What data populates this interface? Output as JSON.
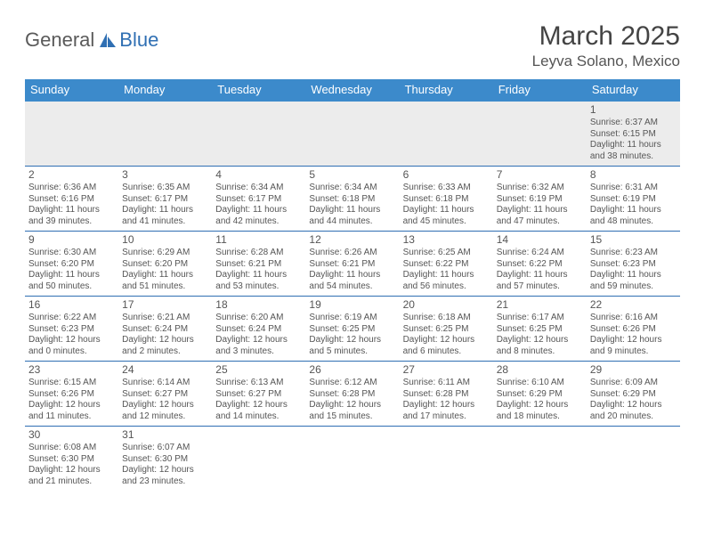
{
  "brand": {
    "gray": "General",
    "blue": "Blue"
  },
  "title": {
    "month": "March 2025",
    "location": "Leyva Solano, Mexico"
  },
  "colors": {
    "header_bg": "#3c8acb",
    "header_text": "#ffffff",
    "cell_border": "#2f6fb3",
    "text": "#555555",
    "empty_bg": "#ececec"
  },
  "dayNames": [
    "Sunday",
    "Monday",
    "Tuesday",
    "Wednesday",
    "Thursday",
    "Friday",
    "Saturday"
  ],
  "weeks": [
    [
      null,
      null,
      null,
      null,
      null,
      null,
      {
        "n": "1",
        "sr": "Sunrise: 6:37 AM",
        "ss": "Sunset: 6:15 PM",
        "dl": "Daylight: 11 hours and 38 minutes."
      }
    ],
    [
      {
        "n": "2",
        "sr": "Sunrise: 6:36 AM",
        "ss": "Sunset: 6:16 PM",
        "dl": "Daylight: 11 hours and 39 minutes."
      },
      {
        "n": "3",
        "sr": "Sunrise: 6:35 AM",
        "ss": "Sunset: 6:17 PM",
        "dl": "Daylight: 11 hours and 41 minutes."
      },
      {
        "n": "4",
        "sr": "Sunrise: 6:34 AM",
        "ss": "Sunset: 6:17 PM",
        "dl": "Daylight: 11 hours and 42 minutes."
      },
      {
        "n": "5",
        "sr": "Sunrise: 6:34 AM",
        "ss": "Sunset: 6:18 PM",
        "dl": "Daylight: 11 hours and 44 minutes."
      },
      {
        "n": "6",
        "sr": "Sunrise: 6:33 AM",
        "ss": "Sunset: 6:18 PM",
        "dl": "Daylight: 11 hours and 45 minutes."
      },
      {
        "n": "7",
        "sr": "Sunrise: 6:32 AM",
        "ss": "Sunset: 6:19 PM",
        "dl": "Daylight: 11 hours and 47 minutes."
      },
      {
        "n": "8",
        "sr": "Sunrise: 6:31 AM",
        "ss": "Sunset: 6:19 PM",
        "dl": "Daylight: 11 hours and 48 minutes."
      }
    ],
    [
      {
        "n": "9",
        "sr": "Sunrise: 6:30 AM",
        "ss": "Sunset: 6:20 PM",
        "dl": "Daylight: 11 hours and 50 minutes."
      },
      {
        "n": "10",
        "sr": "Sunrise: 6:29 AM",
        "ss": "Sunset: 6:20 PM",
        "dl": "Daylight: 11 hours and 51 minutes."
      },
      {
        "n": "11",
        "sr": "Sunrise: 6:28 AM",
        "ss": "Sunset: 6:21 PM",
        "dl": "Daylight: 11 hours and 53 minutes."
      },
      {
        "n": "12",
        "sr": "Sunrise: 6:26 AM",
        "ss": "Sunset: 6:21 PM",
        "dl": "Daylight: 11 hours and 54 minutes."
      },
      {
        "n": "13",
        "sr": "Sunrise: 6:25 AM",
        "ss": "Sunset: 6:22 PM",
        "dl": "Daylight: 11 hours and 56 minutes."
      },
      {
        "n": "14",
        "sr": "Sunrise: 6:24 AM",
        "ss": "Sunset: 6:22 PM",
        "dl": "Daylight: 11 hours and 57 minutes."
      },
      {
        "n": "15",
        "sr": "Sunrise: 6:23 AM",
        "ss": "Sunset: 6:23 PM",
        "dl": "Daylight: 11 hours and 59 minutes."
      }
    ],
    [
      {
        "n": "16",
        "sr": "Sunrise: 6:22 AM",
        "ss": "Sunset: 6:23 PM",
        "dl": "Daylight: 12 hours and 0 minutes."
      },
      {
        "n": "17",
        "sr": "Sunrise: 6:21 AM",
        "ss": "Sunset: 6:24 PM",
        "dl": "Daylight: 12 hours and 2 minutes."
      },
      {
        "n": "18",
        "sr": "Sunrise: 6:20 AM",
        "ss": "Sunset: 6:24 PM",
        "dl": "Daylight: 12 hours and 3 minutes."
      },
      {
        "n": "19",
        "sr": "Sunrise: 6:19 AM",
        "ss": "Sunset: 6:25 PM",
        "dl": "Daylight: 12 hours and 5 minutes."
      },
      {
        "n": "20",
        "sr": "Sunrise: 6:18 AM",
        "ss": "Sunset: 6:25 PM",
        "dl": "Daylight: 12 hours and 6 minutes."
      },
      {
        "n": "21",
        "sr": "Sunrise: 6:17 AM",
        "ss": "Sunset: 6:25 PM",
        "dl": "Daylight: 12 hours and 8 minutes."
      },
      {
        "n": "22",
        "sr": "Sunrise: 6:16 AM",
        "ss": "Sunset: 6:26 PM",
        "dl": "Daylight: 12 hours and 9 minutes."
      }
    ],
    [
      {
        "n": "23",
        "sr": "Sunrise: 6:15 AM",
        "ss": "Sunset: 6:26 PM",
        "dl": "Daylight: 12 hours and 11 minutes."
      },
      {
        "n": "24",
        "sr": "Sunrise: 6:14 AM",
        "ss": "Sunset: 6:27 PM",
        "dl": "Daylight: 12 hours and 12 minutes."
      },
      {
        "n": "25",
        "sr": "Sunrise: 6:13 AM",
        "ss": "Sunset: 6:27 PM",
        "dl": "Daylight: 12 hours and 14 minutes."
      },
      {
        "n": "26",
        "sr": "Sunrise: 6:12 AM",
        "ss": "Sunset: 6:28 PM",
        "dl": "Daylight: 12 hours and 15 minutes."
      },
      {
        "n": "27",
        "sr": "Sunrise: 6:11 AM",
        "ss": "Sunset: 6:28 PM",
        "dl": "Daylight: 12 hours and 17 minutes."
      },
      {
        "n": "28",
        "sr": "Sunrise: 6:10 AM",
        "ss": "Sunset: 6:29 PM",
        "dl": "Daylight: 12 hours and 18 minutes."
      },
      {
        "n": "29",
        "sr": "Sunrise: 6:09 AM",
        "ss": "Sunset: 6:29 PM",
        "dl": "Daylight: 12 hours and 20 minutes."
      }
    ],
    [
      {
        "n": "30",
        "sr": "Sunrise: 6:08 AM",
        "ss": "Sunset: 6:30 PM",
        "dl": "Daylight: 12 hours and 21 minutes."
      },
      {
        "n": "31",
        "sr": "Sunrise: 6:07 AM",
        "ss": "Sunset: 6:30 PM",
        "dl": "Daylight: 12 hours and 23 minutes."
      },
      null,
      null,
      null,
      null,
      null
    ]
  ]
}
